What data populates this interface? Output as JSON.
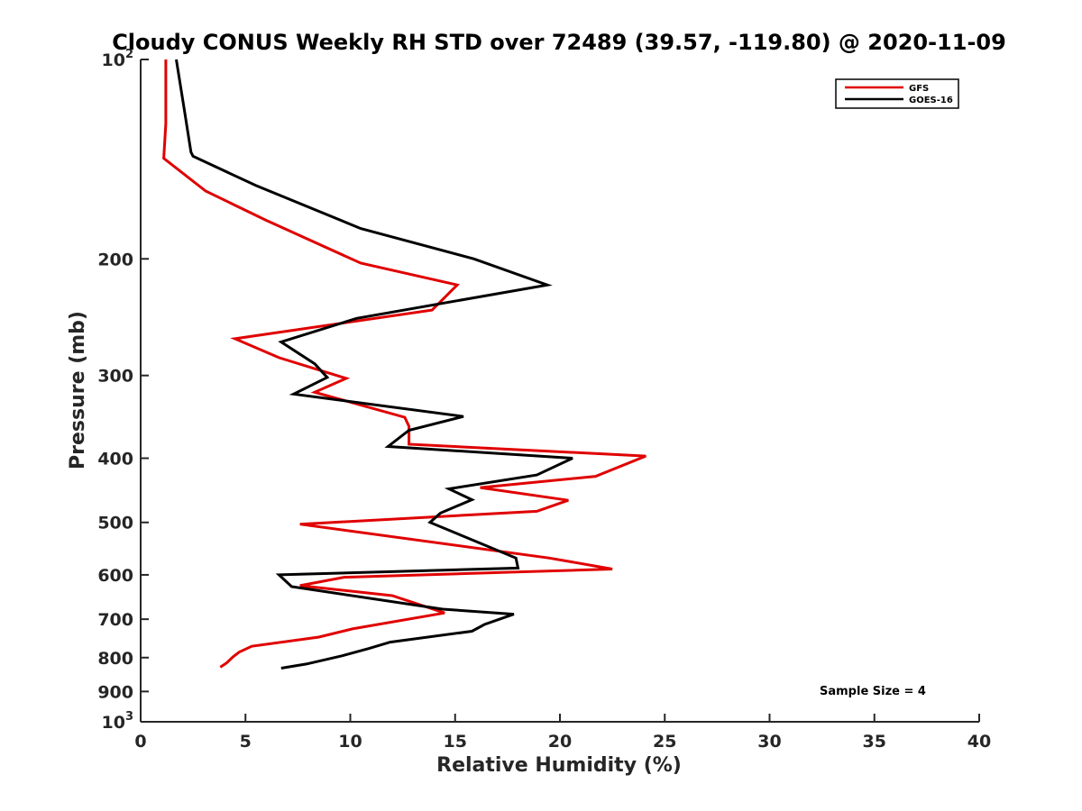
{
  "chart_data": {
    "type": "line",
    "title": "Cloudy CONUS Weekly RH STD over 72489 (39.57, -119.80) @ 2020-11-09",
    "xlabel": "Relative Humidity (%)",
    "ylabel": "Pressure (mb)",
    "xlim": [
      0,
      40
    ],
    "ylim": [
      100,
      1000
    ],
    "yscale": "log",
    "yreversed": true,
    "grid": false,
    "legend_position": "top-right",
    "xticks": [
      {
        "value": 0,
        "label": "0"
      },
      {
        "value": 5,
        "label": "5"
      },
      {
        "value": 10,
        "label": "10"
      },
      {
        "value": 15,
        "label": "15"
      },
      {
        "value": 20,
        "label": "20"
      },
      {
        "value": 25,
        "label": "25"
      },
      {
        "value": 30,
        "label": "30"
      },
      {
        "value": 35,
        "label": "35"
      },
      {
        "value": 40,
        "label": "40"
      }
    ],
    "yticks": [
      {
        "value": 100,
        "label": "10",
        "sup": "2"
      },
      {
        "value": 200,
        "label": "200"
      },
      {
        "value": 300,
        "label": "300"
      },
      {
        "value": 400,
        "label": "400"
      },
      {
        "value": 500,
        "label": "500"
      },
      {
        "value": 600,
        "label": "600"
      },
      {
        "value": 700,
        "label": "700"
      },
      {
        "value": 800,
        "label": "800"
      },
      {
        "value": 900,
        "label": "900"
      },
      {
        "value": 1000,
        "label": "10",
        "sup": "3"
      }
    ],
    "annotation": "Sample Size = 4",
    "series": [
      {
        "name": "GFS",
        "color": "#e00000",
        "points": [
          [
            1.2,
            100
          ],
          [
            1.2,
            125
          ],
          [
            1.1,
            141
          ],
          [
            3.1,
            158
          ],
          [
            6.0,
            175
          ],
          [
            10.5,
            203
          ],
          [
            15.1,
            219
          ],
          [
            13.9,
            239
          ],
          [
            4.5,
            264
          ],
          [
            6.6,
            282
          ],
          [
            9.8,
            303
          ],
          [
            8.3,
            318
          ],
          [
            12.6,
            347
          ],
          [
            12.8,
            358
          ],
          [
            12.8,
            381
          ],
          [
            24.1,
            397
          ],
          [
            21.7,
            426
          ],
          [
            16.2,
            443
          ],
          [
            20.4,
            463
          ],
          [
            18.9,
            481
          ],
          [
            7.6,
            503
          ],
          [
            19.5,
            566
          ],
          [
            22.5,
            588
          ],
          [
            9.7,
            605
          ],
          [
            7.6,
            623
          ],
          [
            12.0,
            645
          ],
          [
            14.5,
            685
          ],
          [
            10.1,
            724
          ],
          [
            8.5,
            745
          ],
          [
            5.3,
            769
          ],
          [
            4.7,
            785
          ],
          [
            4.4,
            798
          ],
          [
            4.1,
            815
          ],
          [
            3.8,
            827
          ]
        ]
      },
      {
        "name": "GOES-16",
        "color": "#000000",
        "points": [
          [
            1.7,
            100
          ],
          [
            2.1,
            120
          ],
          [
            2.4,
            138
          ],
          [
            2.5,
            140
          ],
          [
            5.5,
            155
          ],
          [
            10.5,
            180
          ],
          [
            15.9,
            200
          ],
          [
            19.4,
            219
          ],
          [
            10.3,
            246
          ],
          [
            6.7,
            267
          ],
          [
            8.3,
            288
          ],
          [
            8.9,
            302
          ],
          [
            7.3,
            320
          ],
          [
            15.4,
            346
          ],
          [
            12.8,
            363
          ],
          [
            11.8,
            384
          ],
          [
            20.6,
            400
          ],
          [
            18.9,
            424
          ],
          [
            14.7,
            445
          ],
          [
            15.8,
            462
          ],
          [
            14.3,
            484
          ],
          [
            13.8,
            500
          ],
          [
            17.9,
            566
          ],
          [
            18.0,
            586
          ],
          [
            6.6,
            600
          ],
          [
            7.2,
            625
          ],
          [
            14.4,
            676
          ],
          [
            17.8,
            688
          ],
          [
            16.4,
            713
          ],
          [
            15.8,
            730
          ],
          [
            11.9,
            758
          ],
          [
            10.9,
            775
          ],
          [
            9.6,
            795
          ],
          [
            7.9,
            818
          ],
          [
            6.7,
            830
          ]
        ]
      }
    ]
  }
}
